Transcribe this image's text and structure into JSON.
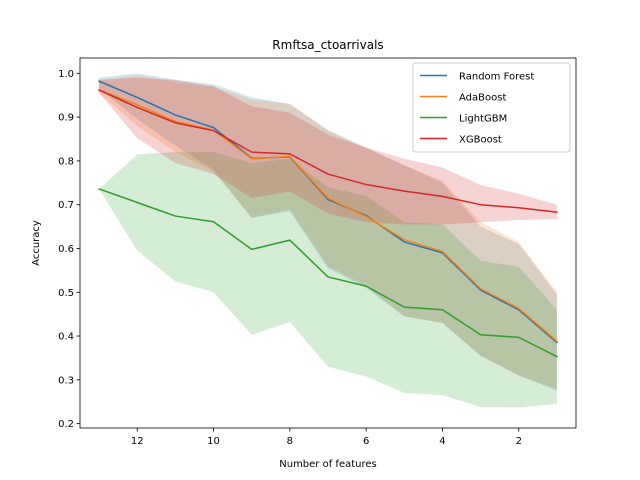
{
  "chart_data": {
    "type": "line",
    "title": "Rmftsa_ctoarrivals",
    "xlabel": "Number of features",
    "ylabel": "Accuracy",
    "xlim": [
      0.5,
      13.5
    ],
    "ylim": [
      0.19,
      1.035
    ],
    "x_reversed": true,
    "xticks": [
      12,
      10,
      8,
      6,
      4,
      2
    ],
    "yticks": [
      0.2,
      0.3,
      0.4,
      0.5,
      0.6,
      0.7,
      0.8,
      0.9,
      1.0
    ],
    "ytick_labels": [
      "0.2",
      "0.3",
      "0.4",
      "0.5",
      "0.6",
      "0.7",
      "0.8",
      "0.9",
      "1.0"
    ],
    "legend_position": "upper-right",
    "x": [
      13,
      12,
      11,
      10,
      9,
      8,
      7,
      6,
      5,
      4,
      3,
      2,
      1
    ],
    "series": [
      {
        "name": "Random Forest",
        "color": "#1f77b4",
        "values": [
          0.982,
          0.945,
          0.905,
          0.876,
          0.806,
          0.809,
          0.712,
          0.675,
          0.615,
          0.59,
          0.505,
          0.46,
          0.385
        ],
        "lower": [
          0.965,
          0.895,
          0.835,
          0.78,
          0.67,
          0.685,
          0.555,
          0.51,
          0.445,
          0.43,
          0.355,
          0.31,
          0.275
        ],
        "upper": [
          0.99,
          1.0,
          0.985,
          0.975,
          0.945,
          0.93,
          0.87,
          0.83,
          0.79,
          0.75,
          0.65,
          0.61,
          0.495
        ]
      },
      {
        "name": "AdaBoost",
        "color": "#ff7f0e",
        "values": [
          0.962,
          0.928,
          0.89,
          0.87,
          0.805,
          0.81,
          0.715,
          0.673,
          0.62,
          0.593,
          0.508,
          0.463,
          0.388
        ],
        "lower": [
          0.955,
          0.88,
          0.82,
          0.775,
          0.67,
          0.69,
          0.56,
          0.515,
          0.445,
          0.43,
          0.355,
          0.31,
          0.28
        ],
        "upper": [
          0.985,
          0.995,
          0.98,
          0.97,
          0.94,
          0.93,
          0.87,
          0.83,
          0.79,
          0.755,
          0.66,
          0.615,
          0.5
        ]
      },
      {
        "name": "LightGBM",
        "color": "#2ca02c",
        "values": [
          0.736,
          0.705,
          0.674,
          0.661,
          0.598,
          0.619,
          0.535,
          0.514,
          0.466,
          0.46,
          0.403,
          0.397,
          0.353
        ],
        "lower": [
          0.736,
          0.595,
          0.525,
          0.5,
          0.403,
          0.432,
          0.33,
          0.308,
          0.27,
          0.265,
          0.238,
          0.237,
          0.245
        ],
        "upper": [
          0.736,
          0.815,
          0.82,
          0.82,
          0.795,
          0.805,
          0.74,
          0.72,
          0.66,
          0.655,
          0.572,
          0.558,
          0.46
        ]
      },
      {
        "name": "XGBoost",
        "color": "#d62728",
        "values": [
          0.962,
          0.922,
          0.887,
          0.869,
          0.82,
          0.816,
          0.77,
          0.746,
          0.731,
          0.719,
          0.7,
          0.693,
          0.683
        ],
        "lower": [
          0.955,
          0.852,
          0.795,
          0.77,
          0.715,
          0.73,
          0.68,
          0.66,
          0.655,
          0.655,
          0.66,
          0.665,
          0.667
        ],
        "upper": [
          0.985,
          0.99,
          0.985,
          0.97,
          0.925,
          0.91,
          0.86,
          0.83,
          0.805,
          0.785,
          0.745,
          0.725,
          0.7
        ]
      }
    ]
  }
}
